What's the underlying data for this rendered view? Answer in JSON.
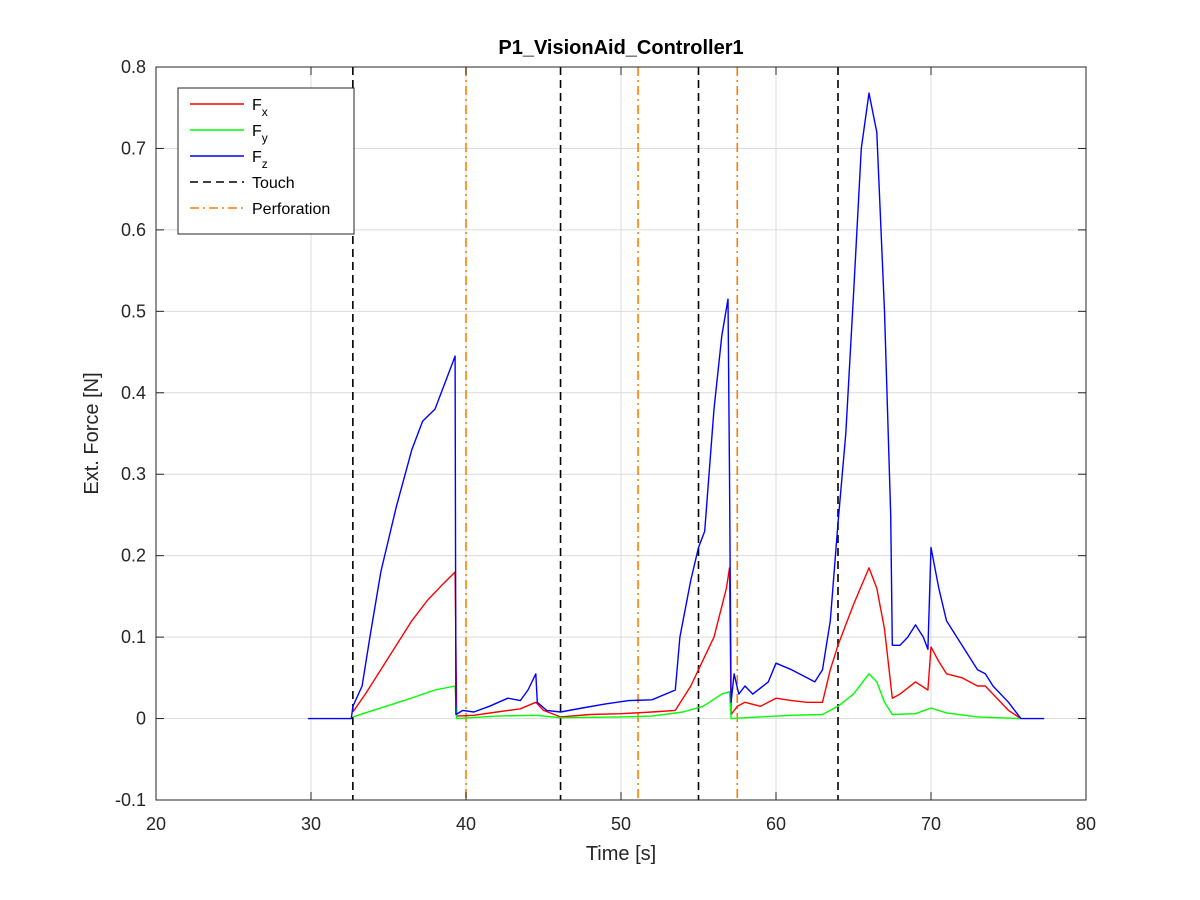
{
  "chart_data": {
    "type": "line",
    "title": "P1_VisionAid_Controller1",
    "xlabel": "Time [s]",
    "ylabel": "Ext. Force [N]",
    "xlim": [
      20,
      80
    ],
    "ylim": [
      -0.1,
      0.8
    ],
    "xticks": [
      20,
      30,
      40,
      50,
      60,
      70,
      80
    ],
    "yticks": [
      -0.1,
      0,
      0.1,
      0.2,
      0.3,
      0.4,
      0.5,
      0.6,
      0.7,
      0.8
    ],
    "xtick_labels": [
      "20",
      "30",
      "40",
      "50",
      "60",
      "70",
      "80"
    ],
    "ytick_labels": [
      "-0.1",
      "0",
      "0.1",
      "0.2",
      "0.3",
      "0.4",
      "0.5",
      "0.6",
      "0.7",
      "0.8"
    ],
    "grid": true,
    "legend_position": "top-left",
    "legend": [
      {
        "label": "F",
        "sub": "x",
        "color": "#ff0000",
        "style": "solid"
      },
      {
        "label": "F",
        "sub": "y",
        "color": "#00ff00",
        "style": "solid"
      },
      {
        "label": "F",
        "sub": "z",
        "color": "#0000ff",
        "style": "solid"
      },
      {
        "label": "Touch",
        "sub": "",
        "color": "#000000",
        "style": "dashed"
      },
      {
        "label": "Perforation",
        "sub": "",
        "color": "#ff8000",
        "style": "dashdot"
      }
    ],
    "vlines": {
      "touch": [
        32.7,
        46.1,
        55.0,
        64.0
      ],
      "perforation": [
        40.0,
        51.1,
        57.5
      ]
    },
    "series": [
      {
        "name": "Fx",
        "color": "#ff0000",
        "x": [
          32.7,
          33.5,
          34.5,
          35.5,
          36.5,
          37.5,
          38.5,
          39.3,
          39.4,
          40.5,
          42,
          43.5,
          44.5,
          45,
          46.1,
          48,
          50,
          52,
          53.5,
          54.5,
          55.3,
          56,
          56.8,
          57,
          57.1,
          57.5,
          58,
          59,
          60,
          61,
          62,
          63,
          63.5,
          64,
          65,
          66,
          66.5,
          67,
          67.5,
          68,
          69,
          69.8,
          70,
          70.5,
          71,
          72,
          73,
          73.5,
          74,
          75,
          75.8
        ],
        "y": [
          0.008,
          0.03,
          0.06,
          0.09,
          0.12,
          0.145,
          0.165,
          0.18,
          0.003,
          0.004,
          0.008,
          0.012,
          0.02,
          0.01,
          0.002,
          0.005,
          0.006,
          0.008,
          0.01,
          0.04,
          0.072,
          0.1,
          0.16,
          0.185,
          0.005,
          0.015,
          0.02,
          0.015,
          0.025,
          0.022,
          0.02,
          0.02,
          0.06,
          0.09,
          0.14,
          0.185,
          0.16,
          0.11,
          0.025,
          0.03,
          0.045,
          0.035,
          0.088,
          0.07,
          0.055,
          0.05,
          0.04,
          0.04,
          0.03,
          0.01,
          0.0
        ]
      },
      {
        "name": "Fy",
        "color": "#00ff00",
        "x": [
          32.7,
          34,
          36,
          38,
          39.3,
          39.4,
          42,
          44.5,
          46.1,
          50,
          52,
          54,
          55.3,
          56.5,
          57,
          57.1,
          59,
          61,
          63,
          64,
          65,
          66,
          66.5,
          67,
          67.5,
          69,
          70,
          71,
          73,
          75.8
        ],
        "y": [
          0.002,
          0.01,
          0.022,
          0.035,
          0.04,
          0.0,
          0.003,
          0.004,
          0.001,
          0.002,
          0.003,
          0.008,
          0.015,
          0.03,
          0.033,
          0.0,
          0.002,
          0.004,
          0.005,
          0.015,
          0.03,
          0.055,
          0.045,
          0.02,
          0.005,
          0.006,
          0.013,
          0.007,
          0.002,
          0.0
        ]
      },
      {
        "name": "Fz",
        "color": "#0000ff",
        "x": [
          29.8,
          32.6,
          32.7,
          33.3,
          33.8,
          34.5,
          35.5,
          36.5,
          37.2,
          38,
          38.8,
          39.3,
          39.35,
          39.8,
          40.5,
          41.5,
          42.7,
          43.5,
          44,
          44.5,
          44.6,
          45.2,
          46.1,
          47.5,
          49,
          50.5,
          52,
          53.5,
          53.8,
          54.5,
          55.0,
          55.4,
          56,
          56.5,
          56.9,
          57.0,
          57.1,
          57.3,
          57.6,
          58,
          58.5,
          59.5,
          60,
          61,
          62,
          62.5,
          63,
          63.5,
          64,
          64.5,
          65,
          65.5,
          66,
          66.5,
          67,
          67.4,
          67.5,
          68,
          68.5,
          69,
          69.5,
          69.8,
          70,
          70.5,
          71,
          72,
          73,
          73.5,
          74,
          75,
          75.8,
          77.3
        ],
        "y": [
          0.0,
          0.0,
          0.015,
          0.04,
          0.1,
          0.18,
          0.26,
          0.33,
          0.365,
          0.38,
          0.42,
          0.445,
          0.005,
          0.01,
          0.008,
          0.015,
          0.025,
          0.022,
          0.035,
          0.055,
          0.02,
          0.01,
          0.008,
          0.013,
          0.018,
          0.022,
          0.023,
          0.035,
          0.1,
          0.17,
          0.21,
          0.23,
          0.38,
          0.47,
          0.515,
          0.3,
          0.02,
          0.055,
          0.03,
          0.04,
          0.03,
          0.045,
          0.068,
          0.06,
          0.05,
          0.045,
          0.06,
          0.12,
          0.24,
          0.35,
          0.52,
          0.7,
          0.768,
          0.72,
          0.5,
          0.25,
          0.09,
          0.09,
          0.1,
          0.115,
          0.1,
          0.085,
          0.21,
          0.16,
          0.12,
          0.09,
          0.06,
          0.055,
          0.04,
          0.02,
          0.0,
          0.0
        ]
      }
    ]
  }
}
